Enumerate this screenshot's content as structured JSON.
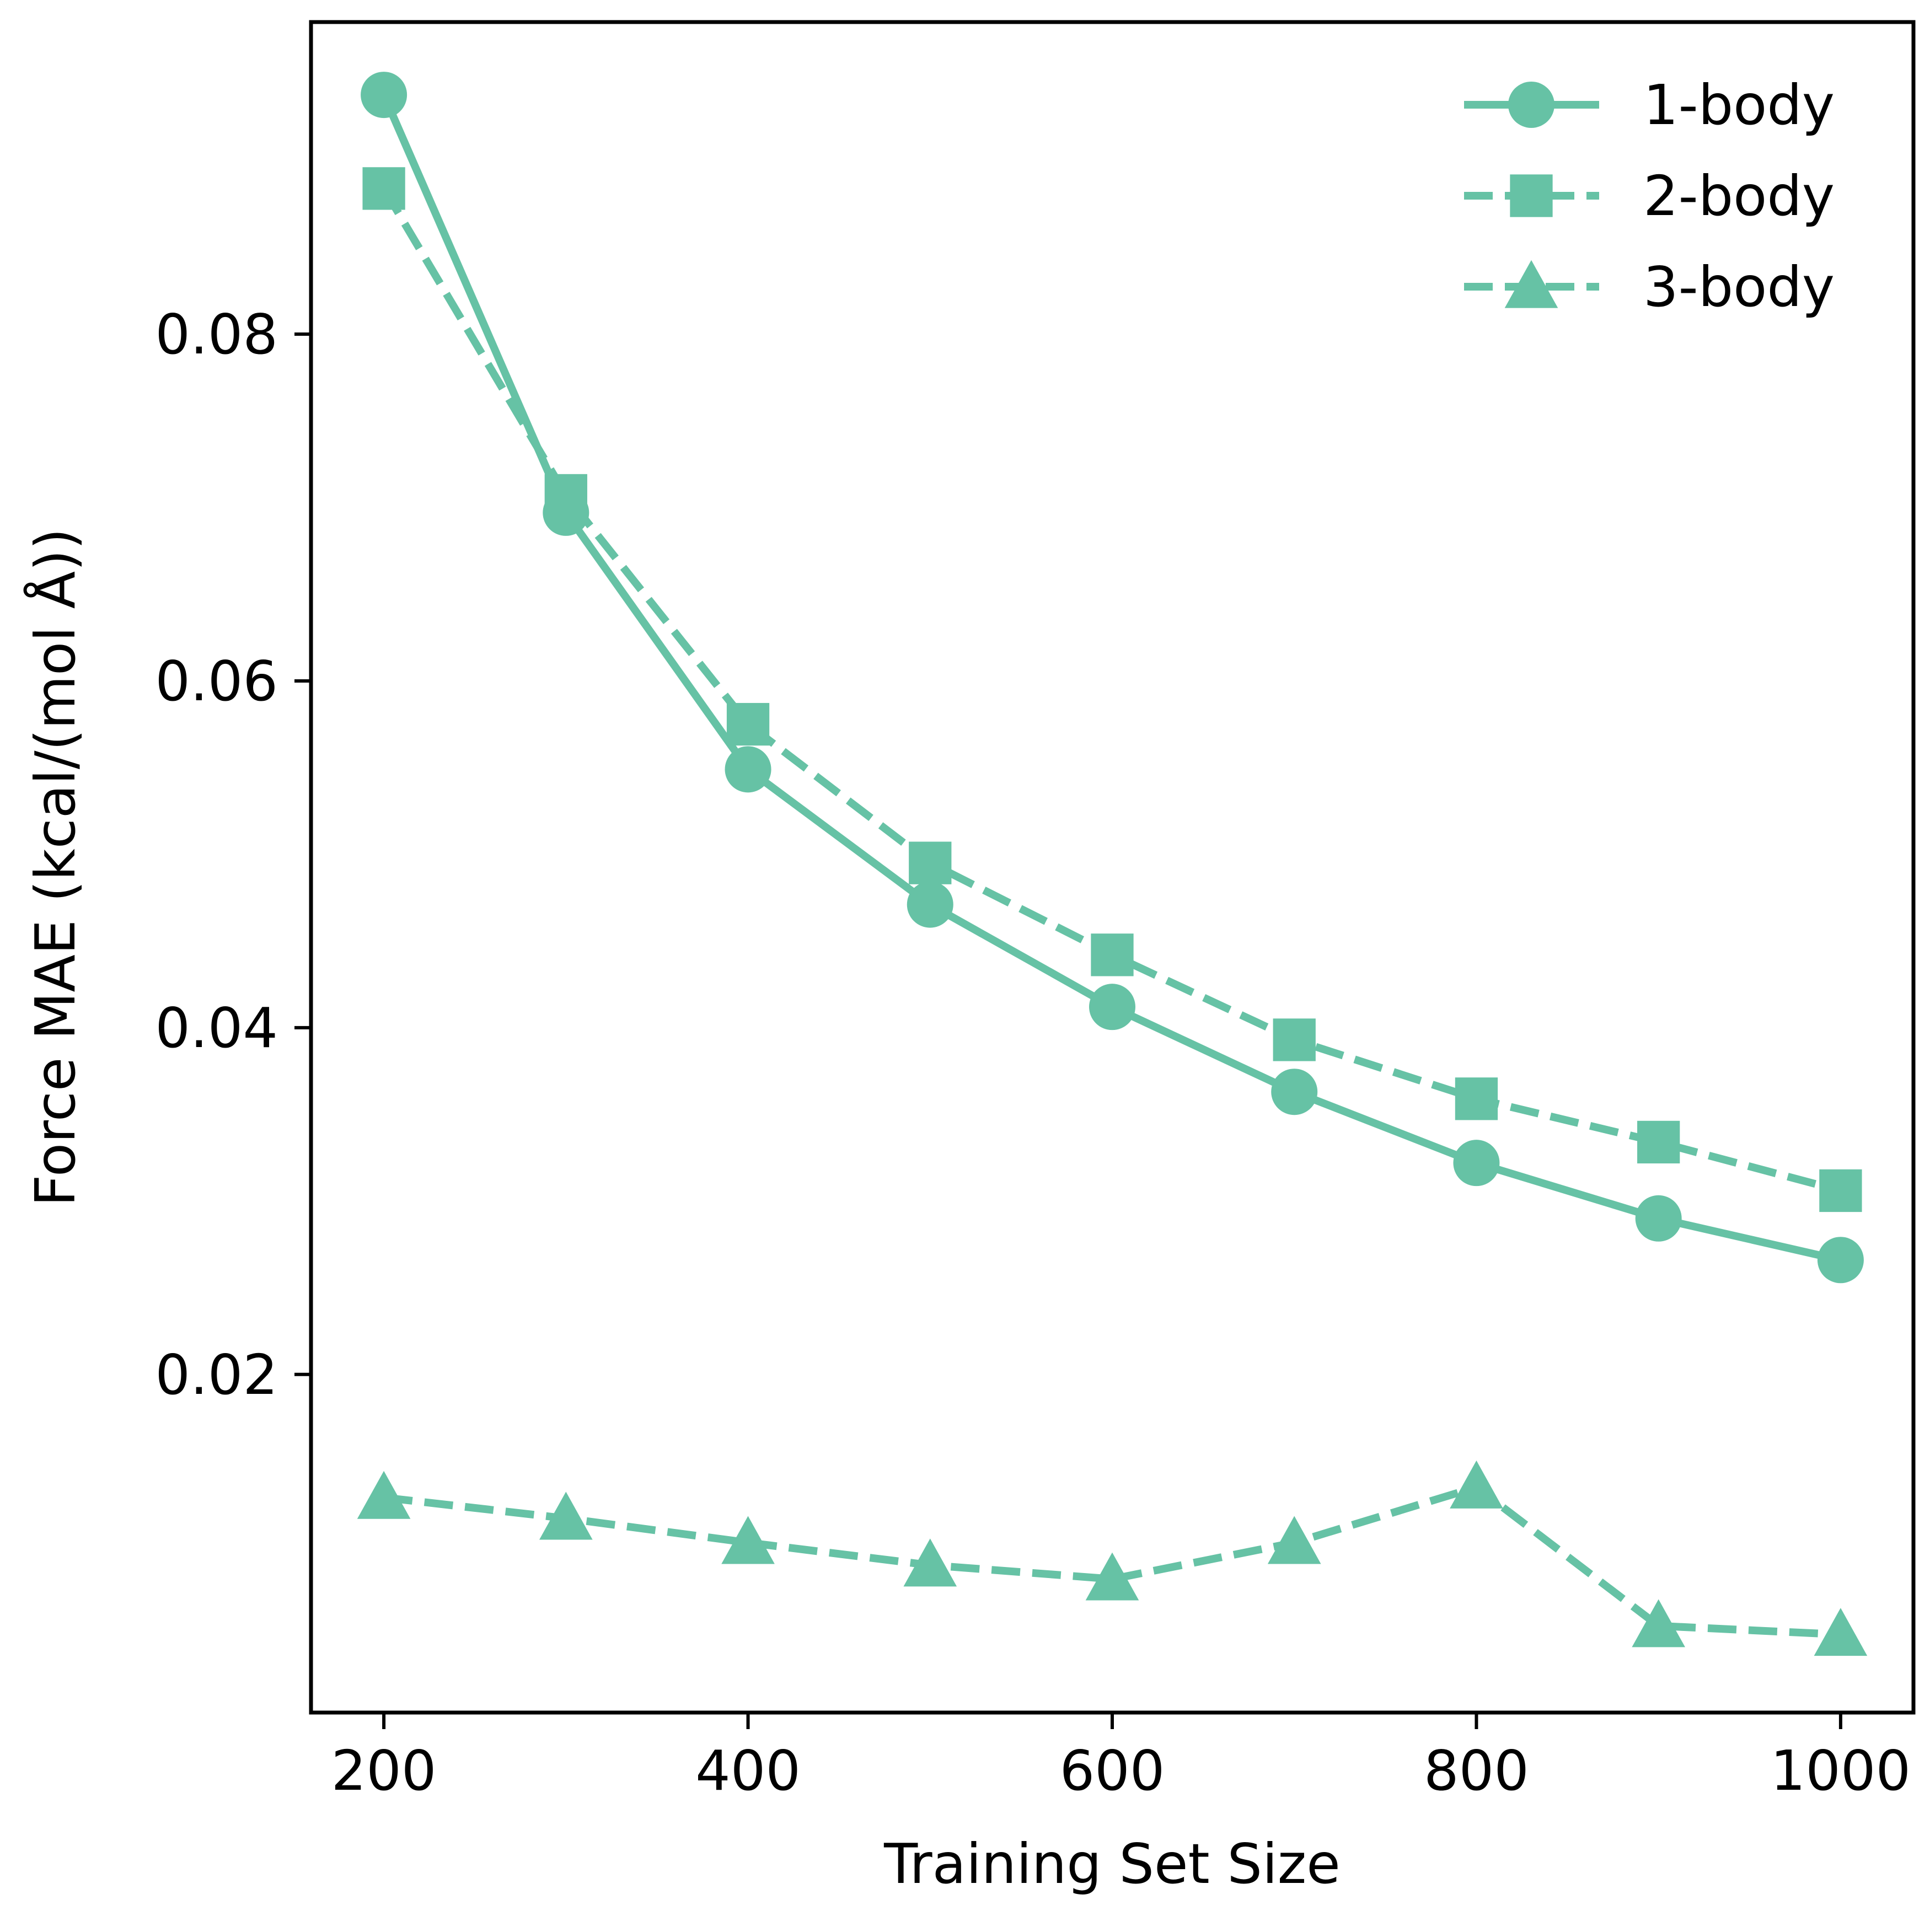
{
  "chart_data": {
    "type": "line",
    "title": "",
    "xlabel": "Training Set Size",
    "ylabel": "Force MAE (kcal/(mol Å))",
    "xlim": [
      160,
      1040
    ],
    "ylim": [
      0.0005,
      0.098
    ],
    "xticks": [
      200,
      400,
      600,
      800,
      1000
    ],
    "xtick_labels": [
      "200",
      "400",
      "600",
      "800",
      "1000"
    ],
    "yticks": [
      0.02,
      0.04,
      0.06,
      0.08
    ],
    "ytick_labels": [
      "0.02",
      "0.04",
      "0.06",
      "0.08"
    ],
    "grid": false,
    "legend_position": "top-right",
    "x": [
      200,
      300,
      400,
      500,
      600,
      700,
      800,
      900,
      1000
    ],
    "series": [
      {
        "name": "1-body",
        "values": [
          0.0938,
          0.0697,
          0.0549,
          0.0471,
          0.0412,
          0.0363,
          0.0322,
          0.029,
          0.0266
        ],
        "marker": "circle",
        "line_style": "solid",
        "color": "#66c2a5"
      },
      {
        "name": "2-body",
        "values": [
          0.0884,
          0.0707,
          0.0575,
          0.0495,
          0.0442,
          0.0393,
          0.0359,
          0.0334,
          0.0306
        ],
        "marker": "square",
        "line_style": "dashed",
        "color": "#66c2a5"
      },
      {
        "name": "3-body",
        "values": [
          0.0129,
          0.0117,
          0.0103,
          0.009,
          0.0082,
          0.0103,
          0.0135,
          0.0055,
          0.005
        ],
        "marker": "triangle",
        "line_style": "dashed",
        "color": "#66c2a5"
      }
    ]
  }
}
